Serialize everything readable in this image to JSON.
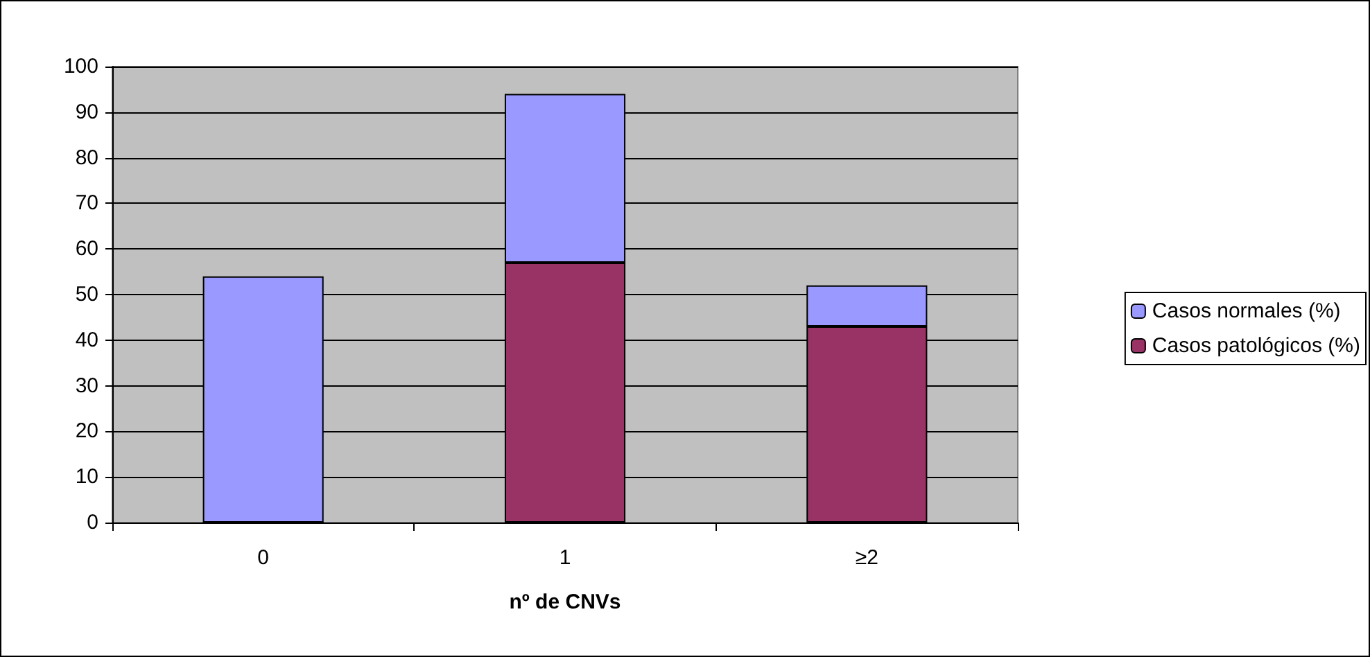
{
  "chart_data": {
    "type": "bar",
    "stacked": true,
    "xlabel": "nº de CNVs",
    "categories": [
      "0",
      "1",
      "≥2"
    ],
    "series": [
      {
        "name": "Casos patológicos (%)",
        "color": "#993366",
        "values": [
          0,
          57,
          43
        ]
      },
      {
        "name": "Casos normales (%)",
        "color": "#9999ff",
        "values": [
          54,
          37,
          9
        ]
      }
    ],
    "ylim": [
      0,
      100
    ],
    "yticks": [
      0,
      10,
      20,
      30,
      40,
      50,
      60,
      70,
      80,
      90,
      100
    ],
    "grid": "y",
    "legend": "right"
  }
}
